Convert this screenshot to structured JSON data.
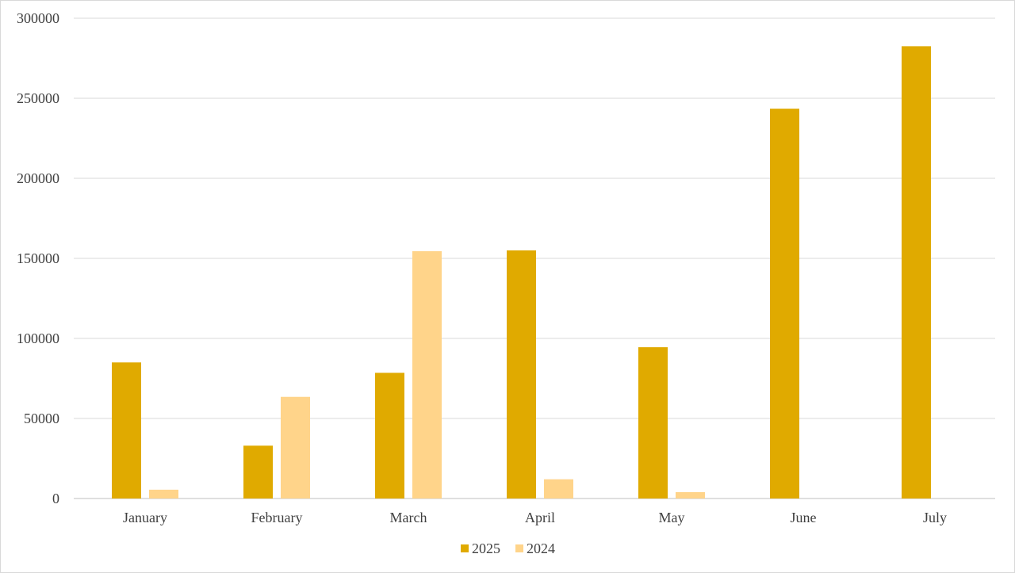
{
  "chart_data": {
    "type": "bar",
    "categories": [
      "January",
      "February",
      "March",
      "April",
      "May",
      "June",
      "July"
    ],
    "series": [
      {
        "name": "2025",
        "color": "#E0AA00",
        "values": [
          85000,
          33000,
          78500,
          155000,
          94500,
          243500,
          282500
        ]
      },
      {
        "name": "2024",
        "color": "#FFD48A",
        "values": [
          5500,
          63500,
          154500,
          12000,
          4000,
          null,
          null
        ]
      }
    ],
    "ylim": [
      0,
      300000
    ],
    "yticks": [
      "0",
      "50000",
      "100000",
      "150000",
      "200000",
      "250000",
      "300000"
    ],
    "grid": true,
    "legend_position": "bottom",
    "title": "",
    "xlabel": "",
    "ylabel": ""
  }
}
